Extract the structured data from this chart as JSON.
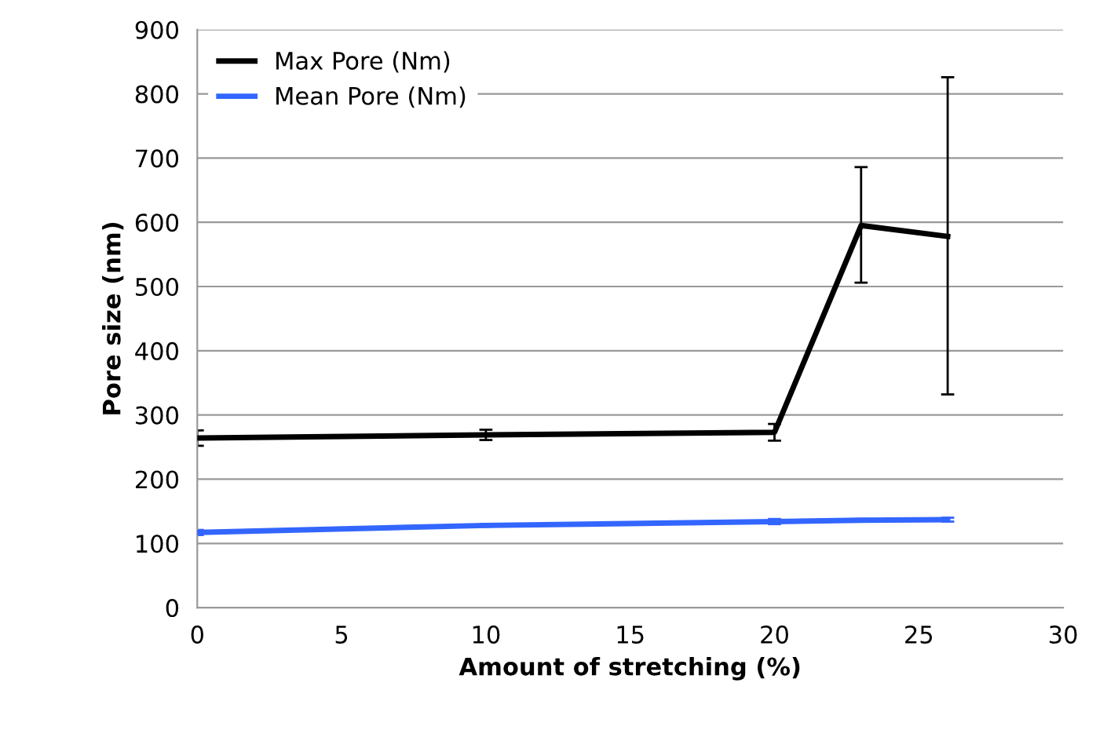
{
  "chart_data": {
    "type": "line",
    "xlabel": "Amount of stretching (%)",
    "ylabel": "Pore size (nm)",
    "x": [
      0,
      10,
      20,
      23,
      26
    ],
    "series": [
      {
        "name": "Max Pore (Nm)",
        "color": "#000000",
        "values": [
          264,
          269,
          273,
          595,
          578
        ],
        "errors": [
          12,
          8,
          13,
          [
            506,
            686
          ],
          [
            332,
            826
          ]
        ]
      },
      {
        "name": "Mean Pore (Nm)",
        "color": "#3366ff",
        "values": [
          117,
          128,
          134,
          136,
          137
        ],
        "errors": [
          4,
          2,
          4,
          2,
          3
        ]
      }
    ],
    "xlim": [
      0,
      30
    ],
    "xticks": [
      0,
      5,
      10,
      15,
      20,
      25,
      30
    ],
    "ylim": [
      0,
      900
    ],
    "yticks": [
      0,
      100,
      200,
      300,
      400,
      500,
      600,
      700,
      800,
      900
    ],
    "grid": "y",
    "legend": "top left",
    "marker": "none",
    "line_style": "solid"
  }
}
